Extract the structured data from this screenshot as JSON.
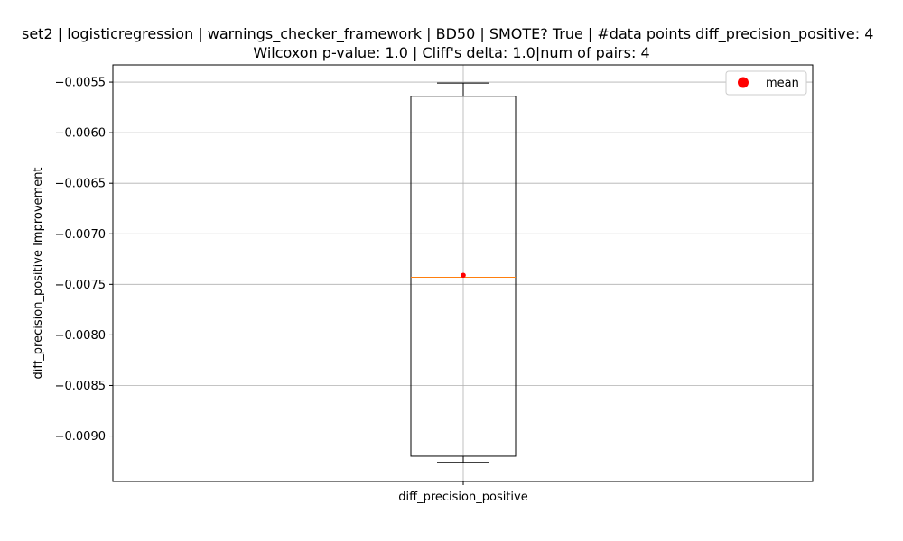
{
  "chart_data": {
    "type": "box",
    "title_line1": "set2 | logisticregression | warnings_checker_framework | BD50 | SMOTE? True | #data points diff_precision_positive: 4",
    "title_line2": "Wilcoxon p-value: 1.0 | Cliff's delta: 1.0|num of pairs: 4",
    "xlabel": "",
    "ylabel": "diff_precision_positive Improvement",
    "categories": [
      "diff_precision_positive"
    ],
    "ylim": [
      -0.00945,
      -0.00533
    ],
    "yticks": [
      -0.0055,
      -0.006,
      -0.0065,
      -0.007,
      -0.0075,
      -0.008,
      -0.0085,
      -0.009
    ],
    "ytick_labels": [
      "−0.0055",
      "−0.0060",
      "−0.0065",
      "−0.0070",
      "−0.0075",
      "−0.0080",
      "−0.0085",
      "−0.0090"
    ],
    "box": {
      "whisker_high": -0.00551,
      "q3": -0.00564,
      "median": -0.00743,
      "q1": -0.0092,
      "whisker_low": -0.00926,
      "mean": -0.00741
    },
    "grid": true,
    "legend": {
      "position": "top-right",
      "entries": [
        {
          "label": "mean",
          "color": "#ff0000",
          "marker": "circle"
        }
      ]
    },
    "colors": {
      "box": "#000000",
      "median": "#ff7f0e",
      "mean": "#ff0000",
      "grid": "#b0b0b0"
    }
  }
}
